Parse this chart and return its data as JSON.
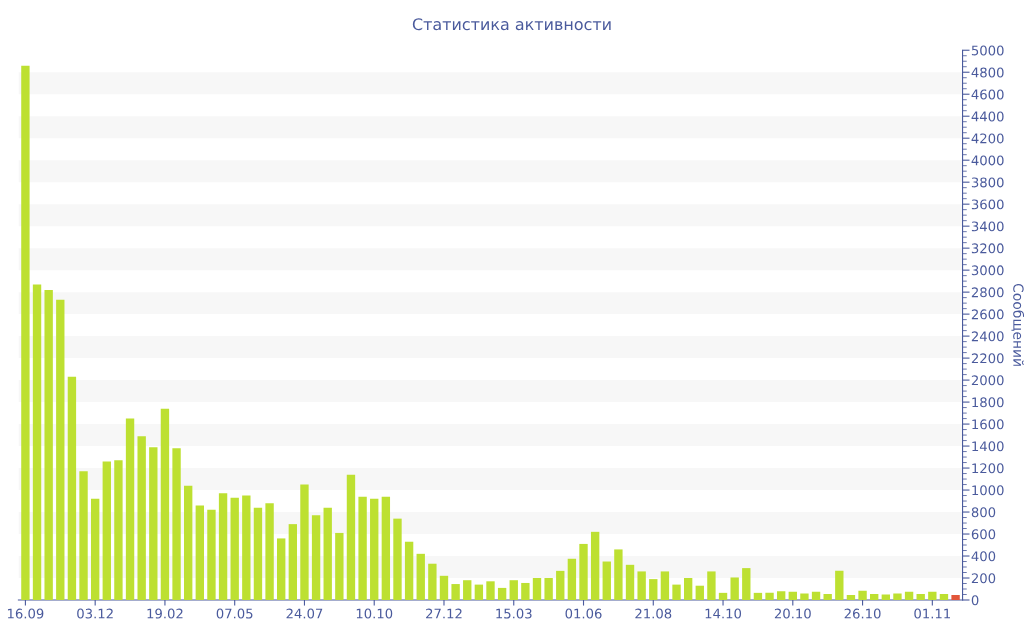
{
  "chart_data": {
    "type": "bar",
    "title": "Статистика активности",
    "ylabel": "Сообщений",
    "categories": [
      "16.09",
      null,
      null,
      null,
      null,
      null,
      "03.12",
      null,
      null,
      null,
      null,
      null,
      "19.02",
      null,
      null,
      null,
      null,
      null,
      "07.05",
      null,
      null,
      null,
      null,
      null,
      "24.07",
      null,
      null,
      null,
      null,
      null,
      "10.10",
      null,
      null,
      null,
      null,
      null,
      "27.12",
      null,
      null,
      null,
      null,
      null,
      "15.03",
      null,
      null,
      null,
      null,
      null,
      "01.06",
      null,
      null,
      null,
      null,
      null,
      "21.08",
      null,
      null,
      null,
      null,
      null,
      "14.10",
      null,
      null,
      null,
      null,
      null,
      "20.10",
      null,
      null,
      null,
      null,
      null,
      "26.10",
      null,
      null,
      null,
      null,
      null,
      "01.11",
      null,
      null
    ],
    "values": [
      4860,
      2870,
      2820,
      2730,
      2030,
      1170,
      920,
      1260,
      1270,
      1650,
      1490,
      1390,
      1740,
      1380,
      1040,
      860,
      820,
      970,
      930,
      950,
      840,
      880,
      560,
      690,
      1050,
      770,
      840,
      610,
      1140,
      940,
      920,
      940,
      740,
      530,
      420,
      330,
      220,
      145,
      180,
      140,
      170,
      110,
      180,
      155,
      200,
      200,
      265,
      375,
      510,
      620,
      350,
      460,
      320,
      260,
      190,
      260,
      140,
      200,
      130,
      260,
      65,
      205,
      290,
      65,
      65,
      80,
      75,
      60,
      75,
      55,
      265,
      45,
      85,
      55,
      50,
      60,
      75,
      55,
      75,
      55,
      45
    ],
    "colors": [
      "#bde031",
      "#bde031",
      "#bde031",
      "#bde031",
      "#bde031",
      "#bde031",
      "#bde031",
      "#bde031",
      "#bde031",
      "#bde031",
      "#bde031",
      "#bde031",
      "#bde031",
      "#bde031",
      "#bde031",
      "#bde031",
      "#bde031",
      "#bde031",
      "#bde031",
      "#bde031",
      "#bde031",
      "#bde031",
      "#bde031",
      "#bde031",
      "#bde031",
      "#bde031",
      "#bde031",
      "#bde031",
      "#bde031",
      "#bde031",
      "#bde031",
      "#bde031",
      "#bde031",
      "#bde031",
      "#bde031",
      "#bde031",
      "#bde031",
      "#bde031",
      "#bde031",
      "#bde031",
      "#bde031",
      "#bde031",
      "#bde031",
      "#bde031",
      "#bde031",
      "#bde031",
      "#bde031",
      "#bde031",
      "#bde031",
      "#bde031",
      "#bde031",
      "#bde031",
      "#bde031",
      "#bde031",
      "#bde031",
      "#bde031",
      "#bde031",
      "#bde031",
      "#bde031",
      "#bde031",
      "#bde031",
      "#bde031",
      "#bde031",
      "#bde031",
      "#bde031",
      "#bde031",
      "#bde031",
      "#bde031",
      "#bde031",
      "#bde031",
      "#bde031",
      "#bde031",
      "#bde031",
      "#bde031",
      "#bde031",
      "#bde031",
      "#bde031",
      "#bde031",
      "#bde031",
      "#bde031",
      "#e2563a"
    ],
    "ylim": [
      0,
      5000
    ],
    "yticks": [
      0,
      200,
      400,
      600,
      800,
      1000,
      1200,
      1400,
      1600,
      1800,
      2000,
      2200,
      2400,
      2600,
      2800,
      3000,
      3200,
      3400,
      3600,
      3800,
      4000,
      4200,
      4400,
      4600,
      4800,
      5000
    ],
    "bands": [
      {
        "axis": "y",
        "from": 200,
        "to": 400,
        "color": "#f7f7f7"
      },
      {
        "axis": "y",
        "from": 600,
        "to": 800,
        "color": "#f7f7f7"
      },
      {
        "axis": "y",
        "from": 1000,
        "to": 1200,
        "color": "#f7f7f7"
      },
      {
        "axis": "y",
        "from": 1400,
        "to": 1600,
        "color": "#f7f7f7"
      },
      {
        "axis": "y",
        "from": 1800,
        "to": 2000,
        "color": "#f7f7f7"
      },
      {
        "axis": "y",
        "from": 2200,
        "to": 2400,
        "color": "#f7f7f7"
      },
      {
        "axis": "y",
        "from": 2600,
        "to": 2800,
        "color": "#f7f7f7"
      },
      {
        "axis": "y",
        "from": 3000,
        "to": 3200,
        "color": "#f7f7f7"
      },
      {
        "axis": "y",
        "from": 3400,
        "to": 3600,
        "color": "#f7f7f7"
      },
      {
        "axis": "y",
        "from": 3800,
        "to": 4000,
        "color": "#f7f7f7"
      },
      {
        "axis": "y",
        "from": 4200,
        "to": 4400,
        "color": "#f7f7f7"
      },
      {
        "axis": "y",
        "from": 4600,
        "to": 4800,
        "color": "#f7f7f7"
      }
    ],
    "grid": false,
    "legend": false
  }
}
